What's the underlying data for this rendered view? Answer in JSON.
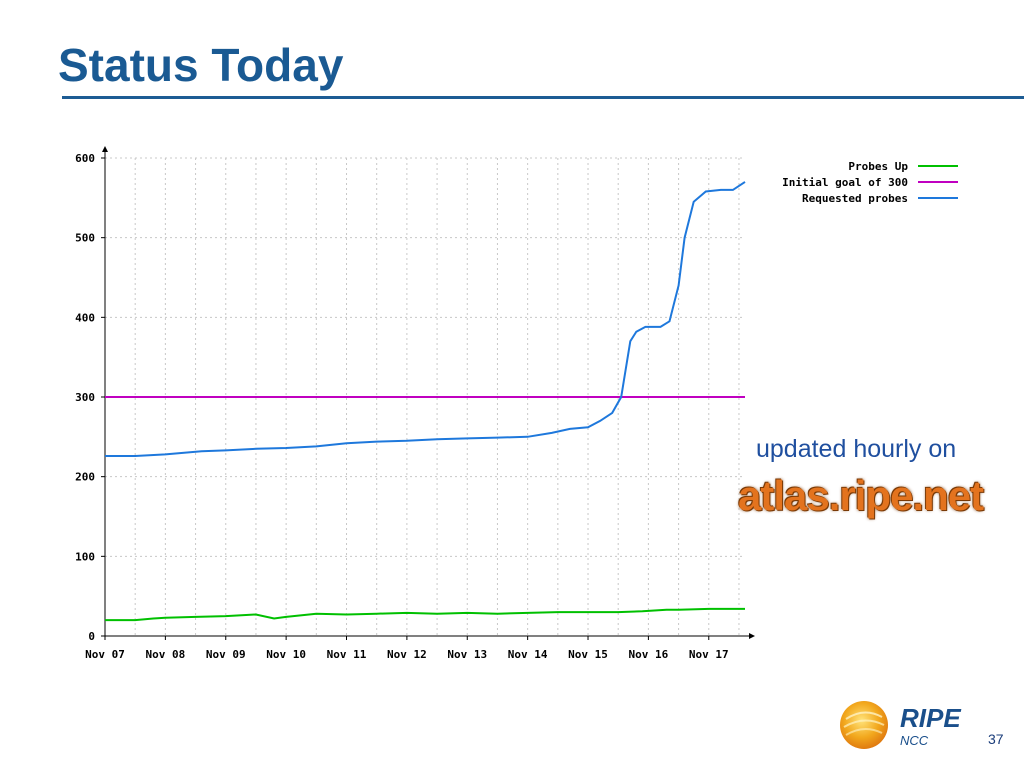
{
  "slide": {
    "title": "Status Today",
    "updated_text": "updated hourly on",
    "atlas_link": "atlas.ripe.net",
    "page_number": "37"
  },
  "logo": {
    "text": "RIPE",
    "subtext": "NCC",
    "colors": {
      "sun": "#f2a81d",
      "text": "#1a4f8b"
    }
  },
  "colors": {
    "title": "#1a5a93",
    "probes_up": "#00c000",
    "goal": "#c000c0",
    "requested": "#1e78dc",
    "grid": "#c8c8c8"
  },
  "chart_data": {
    "type": "line",
    "title": "",
    "xlabel": "",
    "ylabel": "",
    "ylim": [
      0,
      600
    ],
    "xlim": [
      7,
      17.6
    ],
    "yticks": [
      0,
      100,
      200,
      300,
      400,
      500,
      600
    ],
    "x_tick_labels": [
      "Nov 07",
      "Nov 08",
      "Nov 09",
      "Nov 10",
      "Nov 11",
      "Nov 12",
      "Nov 13",
      "Nov 14",
      "Nov 15",
      "Nov 16",
      "Nov 17"
    ],
    "x_tick_positions": [
      7,
      8,
      9,
      10,
      11,
      12,
      13,
      14,
      15,
      16,
      17
    ],
    "grid": true,
    "legend": "top-right",
    "series": [
      {
        "name": "Probes Up",
        "color": "#00c000",
        "x": [
          7.0,
          7.5,
          7.8,
          8.0,
          8.5,
          9.0,
          9.5,
          9.8,
          10.0,
          10.5,
          11.0,
          11.5,
          12.0,
          12.5,
          13.0,
          13.5,
          14.0,
          14.5,
          15.0,
          15.5,
          15.9,
          16.1,
          16.3,
          16.5,
          17.0,
          17.6
        ],
        "y": [
          20,
          20,
          22,
          23,
          24,
          25,
          27,
          22,
          24,
          28,
          27,
          28,
          29,
          28,
          29,
          28,
          29,
          30,
          30,
          30,
          31,
          32,
          33,
          33,
          34,
          34
        ]
      },
      {
        "name": "Initial goal of 300",
        "color": "#c000c0",
        "x": [
          7.0,
          17.6
        ],
        "y": [
          300,
          300
        ]
      },
      {
        "name": "Requested probes",
        "color": "#1e78dc",
        "x": [
          7.0,
          7.5,
          8.0,
          8.6,
          9.0,
          9.5,
          10.0,
          10.5,
          11.0,
          11.5,
          12.0,
          12.5,
          13.0,
          13.5,
          14.0,
          14.4,
          14.7,
          15.0,
          15.2,
          15.4,
          15.55,
          15.7,
          15.8,
          15.95,
          16.2,
          16.35,
          16.5,
          16.6,
          16.75,
          16.95,
          17.2,
          17.4,
          17.6
        ],
        "y": [
          226,
          226,
          228,
          232,
          233,
          235,
          236,
          238,
          242,
          244,
          245,
          247,
          248,
          249,
          250,
          255,
          260,
          262,
          270,
          280,
          300,
          370,
          382,
          388,
          388,
          395,
          440,
          500,
          545,
          558,
          560,
          560,
          570
        ]
      }
    ]
  }
}
